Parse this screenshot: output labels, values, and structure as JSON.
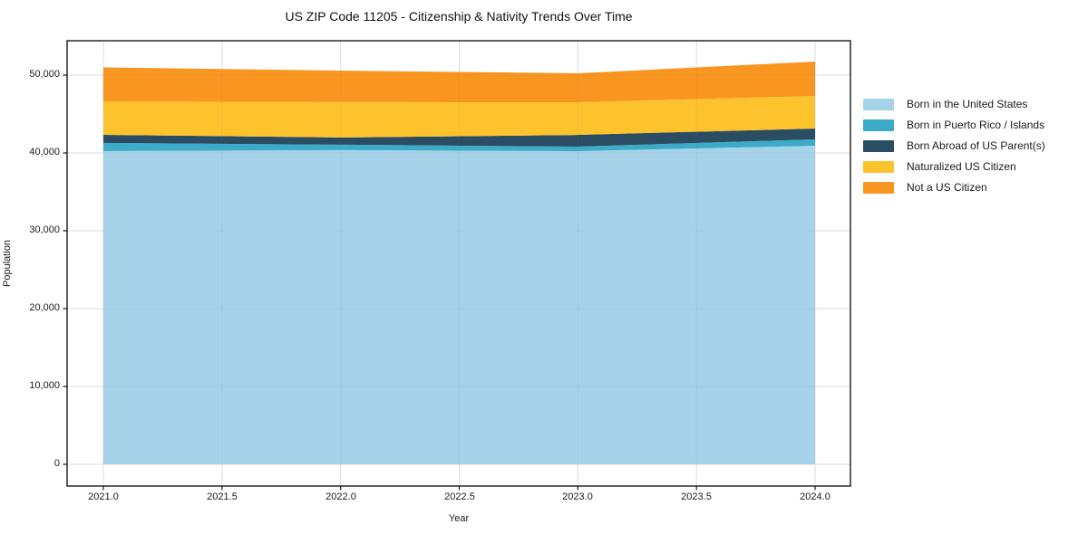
{
  "chart": {
    "title": "US ZIP Code 11205 - Citizenship & Nativity Trends Over Time",
    "x_axis_label": "Year",
    "y_axis_label": "Population",
    "x_tick_labels": [
      "2021.0",
      "2021.5",
      "2022.0",
      "2022.5",
      "2023.0",
      "2023.5",
      "2024.0"
    ],
    "y_tick_labels": [
      "0",
      "10,000",
      "20,000",
      "30,000",
      "40,000",
      "50,000"
    ]
  },
  "chart_data": {
    "type": "area",
    "stacked": true,
    "title": "US ZIP Code 11205 - Citizenship & Nativity Trends Over Time",
    "xlabel": "Year",
    "ylabel": "Population",
    "x": [
      2021,
      2022,
      2023,
      2024
    ],
    "series": [
      {
        "name": "Born in the United States",
        "color": "#a6d3ea",
        "values": [
          40240,
          40360,
          40230,
          40930
        ]
      },
      {
        "name": "Born in Puerto Rico / Islands",
        "color": "#3cabc8",
        "values": [
          1050,
          700,
          580,
          820
        ]
      },
      {
        "name": "Born Abroad of US Parent(s)",
        "color": "#2b4d63",
        "values": [
          1040,
          930,
          1510,
          1390
        ]
      },
      {
        "name": "Naturalized US Citizen",
        "color": "#fcc32d",
        "values": [
          4300,
          4530,
          4190,
          4190
        ]
      },
      {
        "name": "Not a US Citizen",
        "color": "#f8961f",
        "values": [
          4370,
          4060,
          3730,
          4410
        ]
      }
    ],
    "stacked_totals": [
      51000,
      50580,
      50240,
      51740
    ],
    "x_ticks": [
      2021.0,
      2021.5,
      2022.0,
      2022.5,
      2023.0,
      2023.5,
      2024.0
    ],
    "y_ticks": [
      0,
      10000,
      20000,
      30000,
      40000,
      50000
    ],
    "xlim": [
      2020.847,
      2024.149
    ],
    "ylim": [
      -2792,
      54419
    ],
    "grid": true,
    "grid_color": "#e9e9e9",
    "spine_color": "#1a1a1a",
    "legend_position": "outside center right"
  }
}
